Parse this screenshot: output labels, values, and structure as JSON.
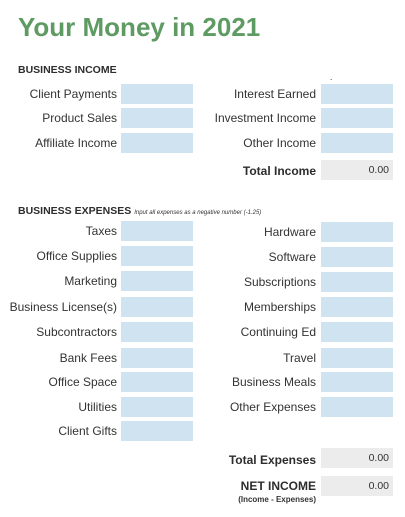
{
  "title": "Your Money in 2021",
  "income": {
    "heading": "BUSINESS INCOME",
    "left": [
      "Client Payments",
      "Product Sales",
      "Affiliate Income"
    ],
    "right": [
      "Interest Earned",
      "Investment Income",
      "Other Income"
    ],
    "total_label": "Total Income",
    "total_value": "0.00"
  },
  "expenses": {
    "heading": "BUSINESS EXPENSES",
    "note": "Input all expenses as a negative number (-1.25)",
    "left": [
      "Taxes",
      "Office Supplies",
      "Marketing",
      "Business License(s)",
      "Subcontractors",
      "Bank Fees",
      "Office Space",
      "Utilities",
      "Client Gifts"
    ],
    "right": [
      "Hardware",
      "Software",
      "Subscriptions",
      "Memberships",
      "Continuing Ed",
      "Travel",
      "Business Meals",
      "Other Expenses"
    ],
    "total_label": "Total Expenses",
    "total_value": "0.00"
  },
  "net": {
    "label": "NET INCOME",
    "sublabel": "(Income - Expenses)",
    "value": "0.00"
  },
  "colors": {
    "title": "#5e9b63",
    "input_fill": "#cfe3f1",
    "total_fill": "#ececec"
  }
}
